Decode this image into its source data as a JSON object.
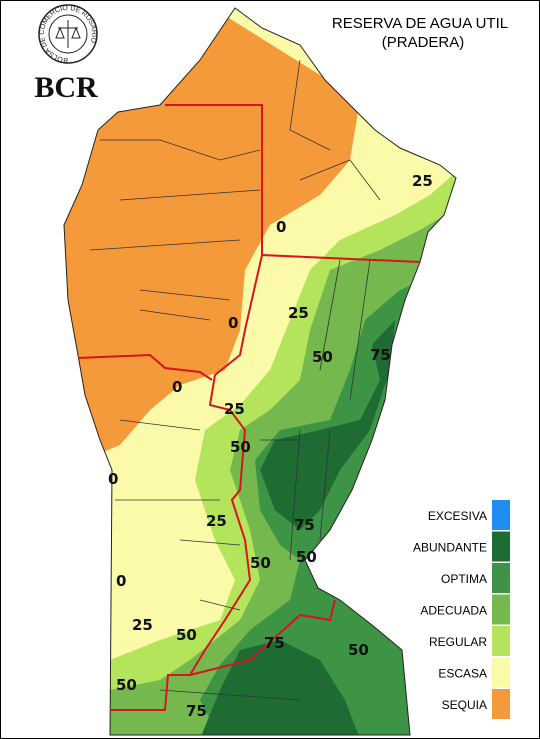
{
  "header": {
    "title": "RESERVA DE AGUA UTIL",
    "subtitle": "(PRADERA)"
  },
  "logo": {
    "seal_text": "BOLSA DE COMERCIO DE ROSARIO",
    "name": "BCR"
  },
  "legend": [
    {
      "label": "EXCESIVA",
      "color": "#1e8ff0"
    },
    {
      "label": "ABUNDANTE",
      "color": "#1e6b34"
    },
    {
      "label": "OPTIMA",
      "color": "#3c9444"
    },
    {
      "label": "ADECUADA",
      "color": "#74b84e"
    },
    {
      "label": "REGULAR",
      "color": "#b4e35c"
    },
    {
      "label": "ESCASA",
      "color": "#fafaa8"
    },
    {
      "label": "SEQUIA",
      "color": "#f59a3a"
    }
  ],
  "contour_labels": [
    25,
    0,
    0,
    25,
    50,
    75,
    0,
    25,
    50,
    0,
    25,
    75,
    50,
    0,
    25,
    50,
    75,
    50,
    50,
    75
  ]
}
